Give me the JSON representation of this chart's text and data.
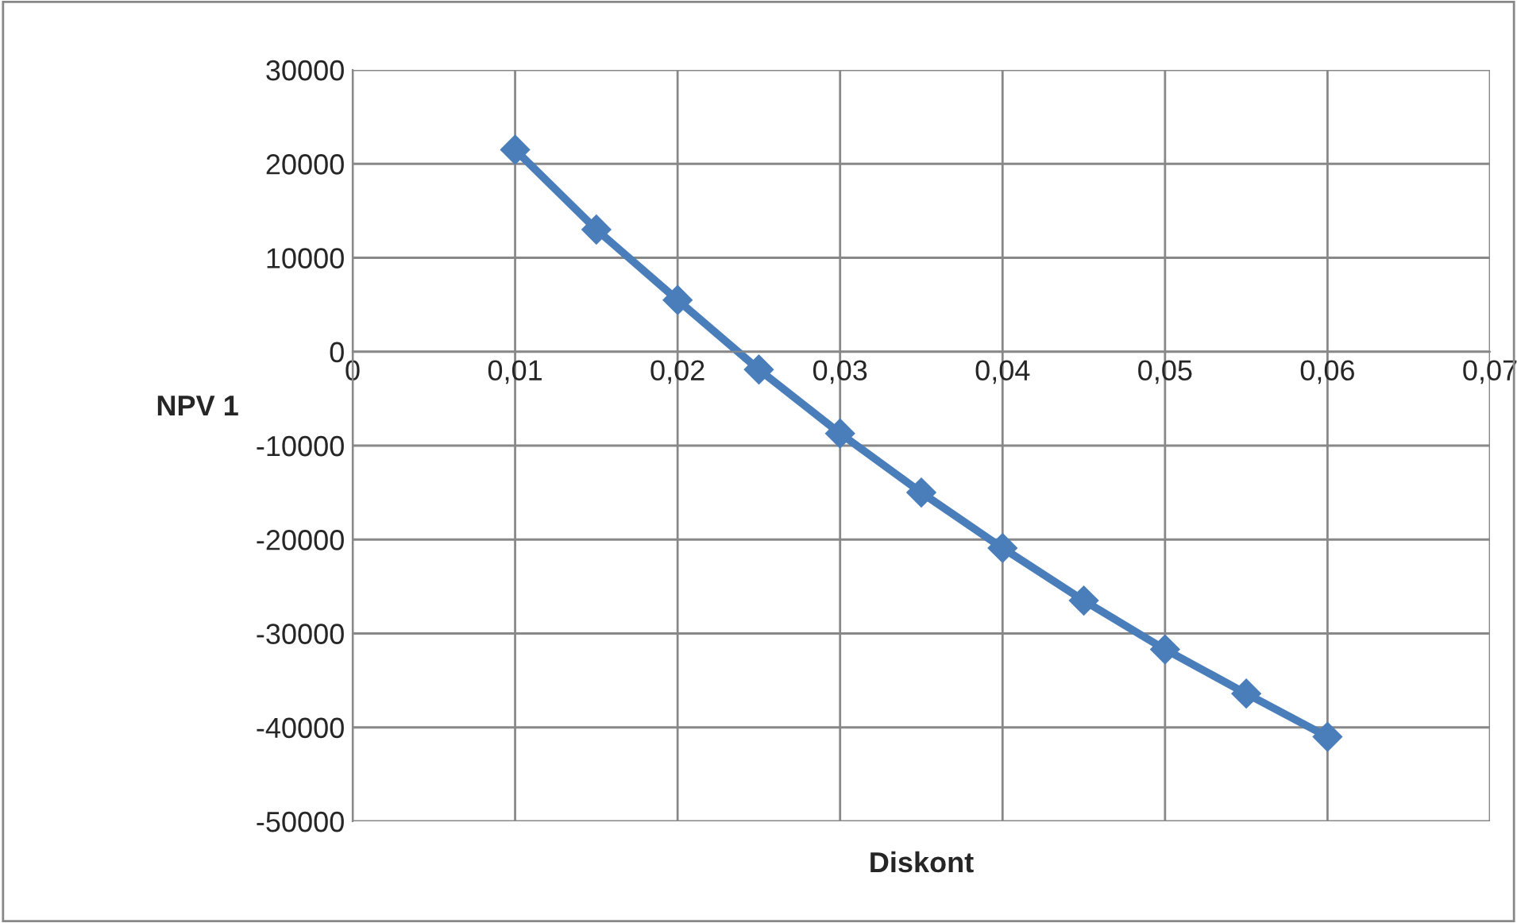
{
  "chart_data": {
    "type": "line",
    "xlabel": "Diskont",
    "ylabel": "NPV 1",
    "x": [
      0.01,
      0.015,
      0.02,
      0.025,
      0.03,
      0.035,
      0.04,
      0.045,
      0.05,
      0.055,
      0.06
    ],
    "series": [
      {
        "color": "#4a7ebb",
        "values": [
          21500,
          13000,
          5500,
          -1900,
          -8700,
          -15000,
          -20900,
          -26500,
          -31700,
          -36400,
          -41000
        ]
      }
    ],
    "xlim": [
      0,
      0.07
    ],
    "xticks": [
      {
        "value": 0,
        "label": "0"
      },
      {
        "value": 0.01,
        "label": "0,01"
      },
      {
        "value": 0.02,
        "label": "0,02"
      },
      {
        "value": 0.03,
        "label": "0,03"
      },
      {
        "value": 0.04,
        "label": "0,04"
      },
      {
        "value": 0.05,
        "label": "0,05"
      },
      {
        "value": 0.06,
        "label": "0,06"
      },
      {
        "value": 0.07,
        "label": "0,07"
      }
    ],
    "ylim": [
      -50000,
      30000
    ],
    "yticks": [
      -50000,
      -40000,
      -30000,
      -20000,
      -10000,
      0,
      10000,
      20000,
      30000
    ],
    "grid": true,
    "marker": "diamond",
    "line_style": "solid",
    "legend": false
  }
}
